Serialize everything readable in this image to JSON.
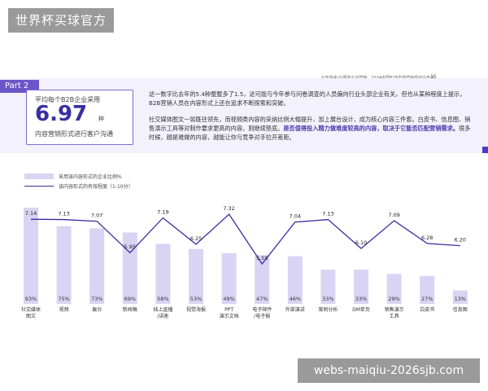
{
  "watermarks": {
    "top": "世界杯买球官方",
    "bottom": "webs-maiqiu-2026sjb.com"
  },
  "header": {
    "source": "©市场来/©图高企业营销，2024中国B2B市场营销现状白皮书",
    "page": "15"
  },
  "part_label": "Part 2",
  "stat": {
    "label": "平均每个B2B企业采用",
    "value": "6.97",
    "unit": "种",
    "description": "内容营销形式进行客户沟通"
  },
  "paragraph1": "这一数字比去年的5.4种整整多了1.5，这可能与今年参与问卷调查的人员偏向行业头部企业有关，但也从某种程度上提示，B2B营销人员在内容形式上还在追求不断探索和突破。",
  "paragraph2": {
    "text_a": "社交媒体图文一如既往领先，而视频类内容的采纳比例大幅提升，加上展台设计，成为核心内容三件套。白皮书、信息图、销售演示工具等对制作要求更高的内容，则继续垫底。",
    "highlight": "是否值得投入精力做难度较高的内容，取决于它能否匹配营销需求。",
    "text_b": "很多时候，越是难做的内容，越能让你与竞争对手拉开差距。"
  },
  "legend": {
    "bar": "采用该内容形式的企业比例%",
    "line": "该内容形式的有效程度（1-10分）"
  },
  "colors": {
    "bar": "#d9d4f3",
    "line": "#3a2fa0",
    "accent": "#6b56c8"
  },
  "chart_data": {
    "type": "bar",
    "categories": [
      "社交媒体图文",
      "视频",
      "展台",
      "新闻稿",
      "线上直播/讲座",
      "视觉海报",
      "PPT演示文档",
      "电子邮件/电子报",
      "外部演讲",
      "案例分析",
      "DM单页",
      "销售演示工具",
      "白皮书",
      "信息图"
    ],
    "category_lines": [
      [
        "社交媒体",
        "图文"
      ],
      [
        "视频"
      ],
      [
        "展台"
      ],
      [
        "新闻稿"
      ],
      [
        "线上直播",
        "/讲座"
      ],
      [
        "视觉海报"
      ],
      [
        "PPT",
        "演示文档"
      ],
      [
        "电子邮件",
        "/电子报"
      ],
      [
        "外部演讲"
      ],
      [
        "案例分析"
      ],
      [
        "DM单页"
      ],
      [
        "销售演示",
        "工具"
      ],
      [
        "白皮书"
      ],
      [
        "信息图"
      ]
    ],
    "series": [
      {
        "name": "采用该内容形式的企业比例%",
        "type": "bar",
        "values": [
          93,
          75,
          73,
          69,
          58,
          53,
          49,
          47,
          46,
          33,
          33,
          29,
          27,
          13
        ],
        "labels": [
          "93%",
          "75%",
          "73%",
          "69%",
          "58%",
          "53%",
          "49%",
          "47%",
          "46%",
          "33%",
          "33%",
          "29%",
          "27%",
          "13%"
        ]
      },
      {
        "name": "该内容形式的有效程度（1-10分）",
        "type": "line",
        "values": [
          7.14,
          7.13,
          7.07,
          5.95,
          7.19,
          6.25,
          7.32,
          5.55,
          7.04,
          7.13,
          6.1,
          7.09,
          6.28,
          6.2
        ],
        "labels": [
          "7.14",
          "7.13",
          "7.07",
          "5.95",
          "7.19",
          "6.25",
          "7.32",
          "5.55",
          "7.04",
          "7.13",
          "6.10",
          "7.09",
          "6.28",
          "6.20"
        ]
      }
    ],
    "legend_position": "top-left",
    "grid": false
  }
}
